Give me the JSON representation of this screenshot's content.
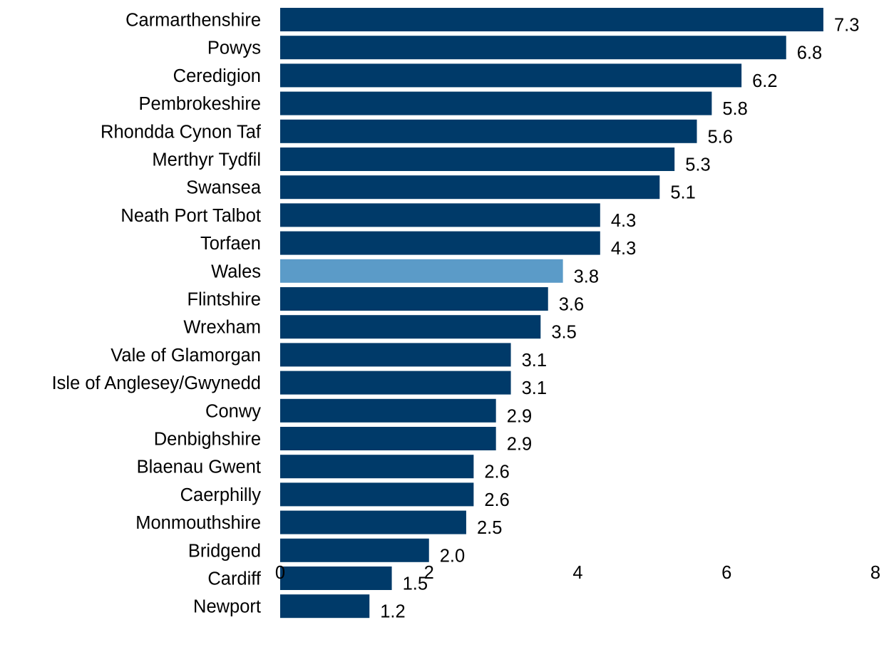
{
  "chart_data": {
    "type": "bar",
    "orientation": "horizontal",
    "categories": [
      "Carmarthenshire",
      "Powys",
      "Ceredigion",
      "Pembrokeshire",
      "Rhondda Cynon Taf",
      "Merthyr Tydfil",
      "Swansea",
      "Neath Port Talbot",
      "Torfaen",
      "Wales",
      "Flintshire",
      "Wrexham",
      "Vale of Glamorgan",
      "Isle of Anglesey/Gwynedd",
      "Conwy",
      "Denbighshire",
      "Blaenau Gwent",
      "Caerphilly",
      "Monmouthshire",
      "Bridgend",
      "Cardiff",
      "Newport"
    ],
    "values": [
      7.3,
      6.8,
      6.2,
      5.8,
      5.6,
      5.3,
      5.1,
      4.3,
      4.3,
      3.8,
      3.6,
      3.5,
      3.1,
      3.1,
      2.9,
      2.9,
      2.6,
      2.6,
      2.5,
      2.0,
      1.5,
      1.2
    ],
    "data_labels": [
      "7.3",
      "6.8",
      "6.2",
      "5.8",
      "5.6",
      "5.3",
      "5.1",
      "4.3",
      "4.3",
      "3.8",
      "3.6",
      "3.5",
      "3.1",
      "3.1",
      "2.9",
      "2.9",
      "2.6",
      "2.6",
      "2.5",
      "2.0",
      "1.5",
      "1.2"
    ],
    "xlim": [
      0,
      8
    ],
    "xticks": [
      0,
      2,
      4,
      6,
      8
    ],
    "xtick_labels": [
      "0",
      "2",
      "4",
      "6",
      "8"
    ],
    "highlight_category": "Wales",
    "bar_color": "#003a69",
    "highlight_color": "#5b9bc8",
    "grid": false,
    "title": "",
    "xlabel": "",
    "ylabel": ""
  }
}
